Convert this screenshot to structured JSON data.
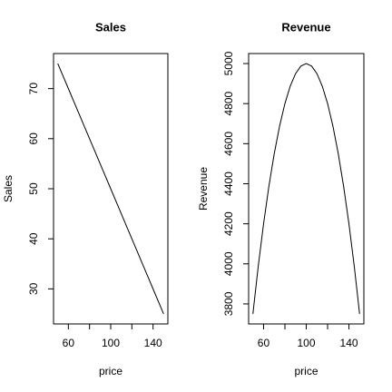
{
  "chart_data": [
    {
      "type": "line",
      "title": "Sales",
      "xlabel": "price",
      "ylabel": "Sales",
      "x": [
        50,
        55,
        60,
        65,
        70,
        75,
        80,
        85,
        90,
        95,
        100,
        105,
        110,
        115,
        120,
        125,
        130,
        135,
        140,
        145,
        150
      ],
      "values": [
        75,
        72.5,
        70,
        67.5,
        65,
        62.5,
        60,
        57.5,
        55,
        52.5,
        50,
        47.5,
        45,
        42.5,
        40,
        37.5,
        35,
        32.5,
        30,
        27.5,
        25
      ],
      "color": "#000000",
      "xlim": [
        46,
        154
      ],
      "xticks": [
        60,
        100,
        140
      ],
      "xminor_ticks": [
        80,
        120
      ],
      "ylim": [
        23,
        77
      ],
      "yticks": [
        30,
        40,
        50,
        60,
        70
      ]
    },
    {
      "type": "line",
      "title": "Revenue",
      "xlabel": "price",
      "ylabel": "Revenue",
      "x": [
        50,
        55,
        60,
        65,
        70,
        75,
        80,
        85,
        90,
        95,
        100,
        105,
        110,
        115,
        120,
        125,
        130,
        135,
        140,
        145,
        150
      ],
      "values": [
        3750,
        3987.5,
        4200,
        4387.5,
        4550,
        4687.5,
        4800,
        4887.5,
        4950,
        4987.5,
        5000,
        4987.5,
        4950,
        4887.5,
        4800,
        4687.5,
        4550,
        4387.5,
        4200,
        3987.5,
        3750
      ],
      "color": "#000000",
      "xlim": [
        46,
        154
      ],
      "xticks": [
        60,
        100,
        140
      ],
      "xminor_ticks": [
        80,
        120
      ],
      "ylim": [
        3700,
        5050
      ],
      "yticks": [
        3800,
        4000,
        4200,
        4400,
        4600,
        4800,
        5000
      ]
    }
  ]
}
